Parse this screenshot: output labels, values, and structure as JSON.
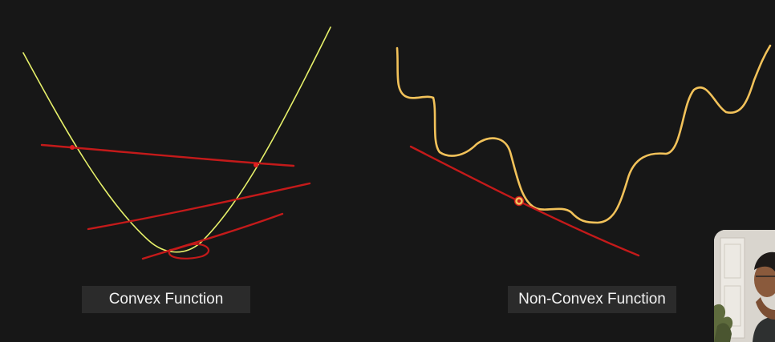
{
  "captions": {
    "convex": "Convex Function",
    "non_convex": "Non-Convex Function"
  },
  "colors": {
    "background": "#171717",
    "convex_curve": "#e6f06a",
    "non_convex_curve": "#f2c25a",
    "tangent_lines": "#c41a1a",
    "caption_box": "#2b2b2b",
    "caption_text": "#f2f2f2"
  },
  "icons": {
    "presenter": "presenter-webcam-thumbnail"
  }
}
